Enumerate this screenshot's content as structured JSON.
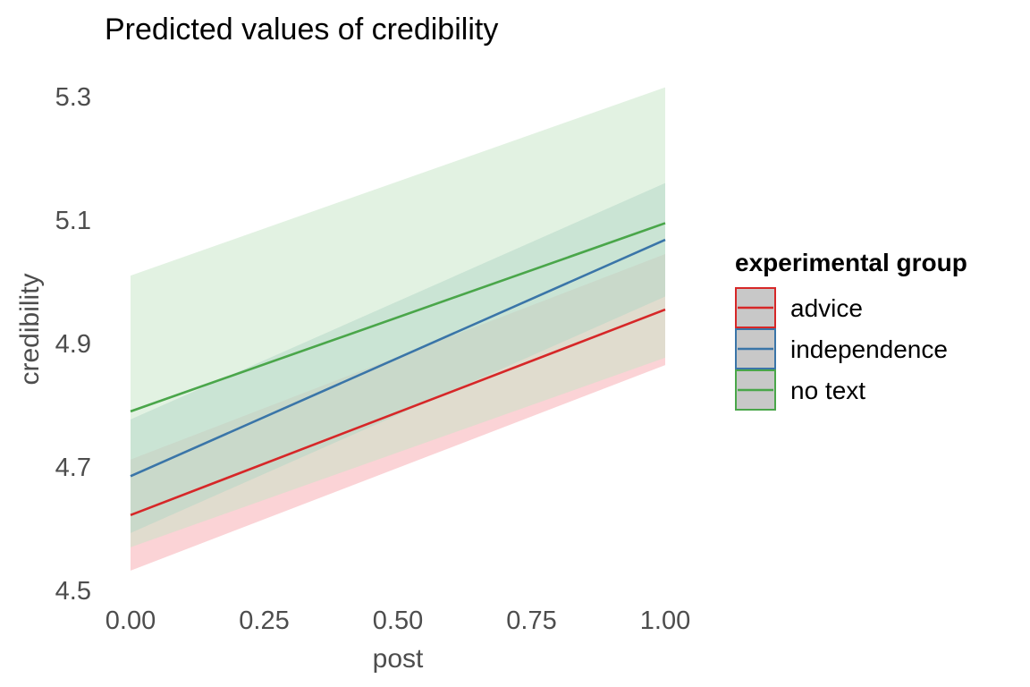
{
  "chart_data": {
    "type": "line",
    "title": "Predicted values of credibility",
    "xlabel": "post",
    "ylabel": "credibility",
    "xlim": [
      0,
      1
    ],
    "ylim": [
      4.5,
      5.3
    ],
    "x_ticks": [
      "0.00",
      "0.25",
      "0.50",
      "0.75",
      "1.00"
    ],
    "x_tick_values": [
      0,
      0.25,
      0.5,
      0.75,
      1
    ],
    "y_ticks": [
      "4.5",
      "4.7",
      "4.9",
      "5.1",
      "5.3"
    ],
    "y_tick_values": [
      4.5,
      4.7,
      4.9,
      5.1,
      5.3
    ],
    "grid": false,
    "legend": {
      "title": "experimental group",
      "position": "right"
    },
    "series": [
      {
        "name": "advice",
        "color": "#d62728",
        "fill": "#f8a8ae",
        "x": [
          0,
          1
        ],
        "y": [
          4.622,
          4.955
        ],
        "ci_low": [
          4.532,
          4.865
        ],
        "ci_high": [
          4.712,
          5.045
        ]
      },
      {
        "name": "independence",
        "color": "#3a75a8",
        "fill": "#9ec6c8",
        "x": [
          0,
          1
        ],
        "y": [
          4.685,
          5.068
        ],
        "ci_low": [
          4.593,
          4.976
        ],
        "ci_high": [
          4.777,
          5.16
        ]
      },
      {
        "name": "no text",
        "color": "#4aa64a",
        "fill": "#c6e6c6",
        "x": [
          0,
          1
        ],
        "y": [
          4.79,
          5.095
        ],
        "ci_low": [
          4.57,
          4.877
        ],
        "ci_high": [
          5.01,
          5.315
        ]
      }
    ]
  }
}
